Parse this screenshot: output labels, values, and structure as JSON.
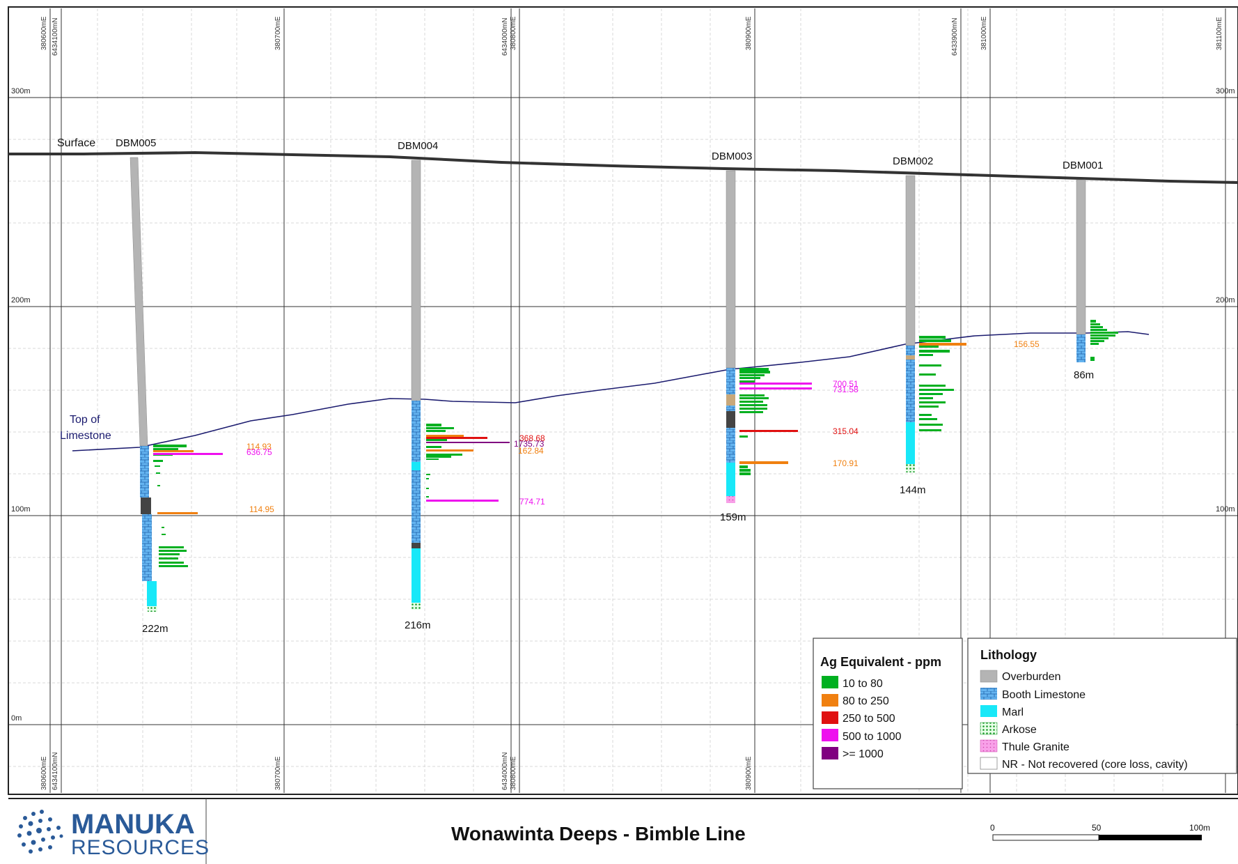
{
  "grid_labels": {
    "top": {
      "g1a": "380600mE",
      "g1b": "6434100mN",
      "g2": "380700mE",
      "g3a": "6434000mN",
      "g3b": "380800mE",
      "g4": "380900mE",
      "g5": "6433900mN",
      "g6": "381000mE",
      "g7": "381100mE"
    },
    "bottom": {
      "g1a": "380600mE",
      "g1b": "6434100mN",
      "g2": "380700mE",
      "g3a": "6434000mN",
      "g3b": "380800mE",
      "g4": "380900mE"
    }
  },
  "elevations": {
    "e300_left": "300m",
    "e300_right": "300m",
    "e200_left": "200m",
    "e200_right": "200m",
    "e100_left": "100m",
    "e100_right": "100m",
    "e0_left": "0m"
  },
  "callouts": {
    "surface": "Surface",
    "top_of_limestone_1": "Top of",
    "top_of_limestone_2": "Limestone"
  },
  "holes": [
    {
      "id": "DBM005",
      "depth": "222m"
    },
    {
      "id": "DBM004",
      "depth": "216m"
    },
    {
      "id": "DBM003",
      "depth": "159m"
    },
    {
      "id": "DBM002",
      "depth": "144m"
    },
    {
      "id": "DBM001",
      "depth": "86m"
    }
  ],
  "assays": [
    {
      "hole": "DBM005",
      "value": "114.93",
      "class": "80 to 250"
    },
    {
      "hole": "DBM005",
      "value": "636.75",
      "class": "500 to 1000"
    },
    {
      "hole": "DBM005",
      "value": "114.95",
      "class": "80 to 250"
    },
    {
      "hole": "DBM004",
      "value": "368.68",
      "class": "250 to 500"
    },
    {
      "hole": "DBM004",
      "value": "1735.73",
      "class": ">= 1000"
    },
    {
      "hole": "DBM004",
      "value": "162.84",
      "class": "80 to 250"
    },
    {
      "hole": "DBM004",
      "value": "774.71",
      "class": "500 to 1000"
    },
    {
      "hole": "DBM003",
      "value": "700.51",
      "class": "500 to 1000"
    },
    {
      "hole": "DBM003",
      "value": "731.58",
      "class": "500 to 1000"
    },
    {
      "hole": "DBM003",
      "value": "315.04",
      "class": "250 to 500"
    },
    {
      "hole": "DBM003",
      "value": "170.91",
      "class": "80 to 250"
    },
    {
      "hole": "DBM002",
      "value": "156.55",
      "class": "80 to 250"
    }
  ],
  "legend_ag": {
    "title": "Ag Equivalent - ppm",
    "items": [
      {
        "label": "10 to 80",
        "color": "#00b020"
      },
      {
        "label": "80 to 250",
        "color": "#f08010"
      },
      {
        "label": "250 to 500",
        "color": "#e01010"
      },
      {
        "label": "500 to 1000",
        "color": "#ee10ee"
      },
      {
        "label": ">= 1000",
        "color": "#800080"
      }
    ]
  },
  "legend_lith": {
    "title": "Lithology",
    "items": [
      {
        "label": "Overburden",
        "color": "#b4b4b4"
      },
      {
        "label": "Booth Limestone",
        "color": "#64b4f0"
      },
      {
        "label": "Marl",
        "color": "#18e8f8"
      },
      {
        "label": "Arkose",
        "color": "#30c040"
      },
      {
        "label": "Thule Granite",
        "color": "#f8a0e8"
      },
      {
        "label": "NR - Not recovered (core loss, cavity)",
        "color": "#ffffff"
      }
    ]
  },
  "footer": {
    "logo_line1": "MANUKA",
    "logo_line2": "RESOURCES",
    "title": "Wonawinta Deeps - Bimble Line",
    "scale_0": "0",
    "scale_50": "50",
    "scale_100": "100m"
  },
  "colors": {
    "frame": "#222222",
    "major_grid": "#333333",
    "minor_grid": "#d8d8d8",
    "surface_line": "#333333",
    "limestone_line": "#1a1a6e",
    "overburden": "#b4b4b4",
    "limestone": "#64b4f0",
    "marl": "#18e8f8",
    "logo_blue": "#2a5a98"
  }
}
